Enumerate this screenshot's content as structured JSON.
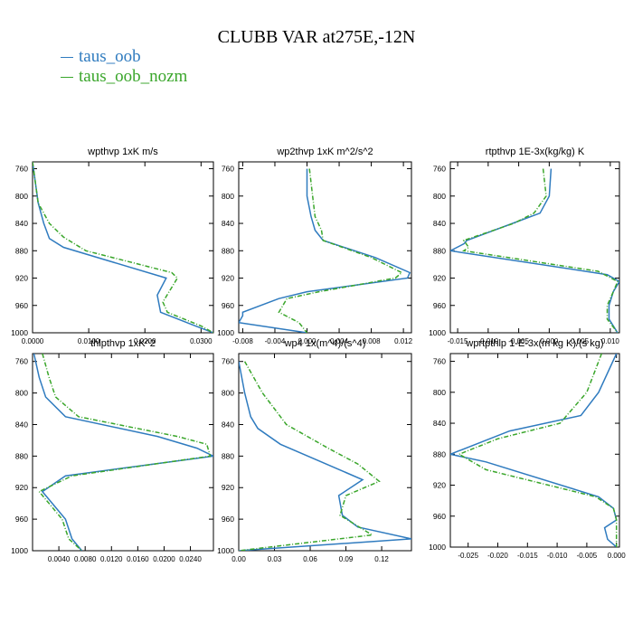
{
  "title": "CLUBB VAR at275E,-12N",
  "colors": {
    "taus_oob": "#2f7bbf",
    "taus_oob_nozm": "#3aa62b"
  },
  "legend": [
    {
      "name": "taus_oob",
      "color": "#2f7bbf",
      "style": "solid"
    },
    {
      "name": "taus_oob_nozm",
      "color": "#3aa62b",
      "style": "dashed"
    }
  ],
  "chart_data": [
    {
      "type": "line",
      "title": "wpthvp  1xK m/s",
      "xlim": [
        0,
        0.0322
      ],
      "ylim": [
        1000,
        750
      ],
      "xticks": [
        0,
        0.01,
        0.02,
        0.03
      ],
      "xticklabels": [
        "0.0000",
        "0.0100",
        "0.0200",
        "0.0300"
      ],
      "yticks": [
        760,
        800,
        840,
        880,
        920,
        960,
        1000
      ],
      "yticklabels": [
        "760",
        "800",
        "840",
        "880",
        "920",
        "960",
        "1000"
      ],
      "series": [
        {
          "name": "taus_oob",
          "y": [
            750,
            780,
            810,
            840,
            862,
            875,
            920,
            945,
            970,
            990,
            1000
          ],
          "x": [
            0.0,
            0.0005,
            0.001,
            0.002,
            0.003,
            0.0055,
            0.0238,
            0.0222,
            0.0228,
            0.029,
            0.0322
          ]
        },
        {
          "name": "taus_oob_nozm",
          "y": [
            750,
            780,
            810,
            840,
            860,
            880,
            912,
            920,
            955,
            970,
            990,
            1000
          ],
          "x": [
            0.0,
            0.0005,
            0.001,
            0.003,
            0.0055,
            0.0095,
            0.0248,
            0.0258,
            0.0232,
            0.024,
            0.03,
            0.0322
          ]
        }
      ]
    },
    {
      "type": "line",
      "title": "wp2thvp  1xK m^2/s^2",
      "xlim": [
        -0.0085,
        0.013
      ],
      "ylim": [
        1000,
        750
      ],
      "xticks": [
        -0.008,
        -0.004,
        0.0,
        0.004,
        0.008,
        0.012
      ],
      "xticklabels": [
        "-0.008",
        "-0.004",
        "0.000",
        "0.004",
        "0.008",
        "0.012"
      ],
      "yticks": [
        760,
        800,
        840,
        880,
        920,
        960,
        1000
      ],
      "yticklabels": [
        "760",
        "800",
        "840",
        "880",
        "920",
        "960",
        "1000"
      ],
      "series": [
        {
          "name": "taus_oob",
          "y": [
            760,
            800,
            830,
            850,
            865,
            890,
            912,
            920,
            940,
            950,
            970,
            975,
            985,
            1000
          ],
          "x": [
            0.0,
            0.0,
            0.0005,
            0.001,
            0.002,
            0.0085,
            0.0128,
            0.0125,
            0.0,
            -0.0035,
            -0.008,
            -0.008,
            -0.0085,
            0.0
          ]
        },
        {
          "name": "taus_oob_nozm",
          "y": [
            760,
            800,
            830,
            850,
            865,
            890,
            912,
            920,
            940,
            950,
            970,
            985,
            1000
          ],
          "x": [
            0.0003,
            0.0007,
            0.001,
            0.0018,
            0.002,
            0.008,
            0.0118,
            0.011,
            0.0015,
            -0.0025,
            -0.0035,
            -0.001,
            0.0
          ]
        }
      ]
    },
    {
      "type": "line",
      "title": "rtpthvp  1E-3x(kg/kg) K",
      "xlim": [
        -0.0162,
        0.0115
      ],
      "ylim": [
        1000,
        750
      ],
      "xticks": [
        -0.015,
        -0.01,
        -0.005,
        0.0,
        0.005,
        0.01
      ],
      "xticklabels": [
        "-0.015",
        "-0.010",
        "-0.005",
        "0.000",
        "0.005",
        "0.010"
      ],
      "yticks": [
        760,
        800,
        840,
        880,
        920,
        960,
        1000
      ],
      "yticklabels": [
        "760",
        "800",
        "840",
        "880",
        "920",
        "960",
        "1000"
      ],
      "series": [
        {
          "name": "taus_oob",
          "y": [
            760,
            800,
            825,
            840,
            865,
            870,
            880,
            915,
            925,
            940,
            960,
            980,
            1000
          ],
          "x": [
            0.0003,
            0.0,
            -0.0015,
            -0.006,
            -0.0135,
            -0.014,
            -0.0162,
            0.0095,
            0.0115,
            0.0105,
            0.0098,
            0.0098,
            0.0112
          ]
        },
        {
          "name": "taus_oob_nozm",
          "y": [
            760,
            800,
            825,
            840,
            865,
            875,
            880,
            910,
            925,
            940,
            960,
            980,
            1000
          ],
          "x": [
            -0.001,
            -0.0005,
            -0.0025,
            -0.0058,
            -0.014,
            -0.0132,
            -0.014,
            0.008,
            0.0112,
            0.0105,
            0.0095,
            0.0095,
            0.0112
          ]
        }
      ]
    },
    {
      "type": "line",
      "title": "thlpthvp  1xK^2",
      "xlim": [
        0,
        0.0275
      ],
      "ylim": [
        1000,
        750
      ],
      "xticks": [
        0.004,
        0.008,
        0.012,
        0.016,
        0.02,
        0.024
      ],
      "xticklabels": [
        "0.0040",
        "0.0080",
        "0.0120",
        "0.0160",
        "0.0200",
        "0.0240"
      ],
      "yticks": [
        760,
        800,
        840,
        880,
        920,
        960,
        1000
      ],
      "yticklabels": [
        "760",
        "800",
        "840",
        "880",
        "920",
        "960",
        "1000"
      ],
      "series": [
        {
          "name": "taus_oob",
          "y": [
            750,
            780,
            805,
            830,
            855,
            870,
            880,
            905,
            925,
            960,
            985,
            1000
          ],
          "x": [
            0.0002,
            0.001,
            0.002,
            0.005,
            0.019,
            0.025,
            0.0275,
            0.005,
            0.0015,
            0.005,
            0.006,
            0.0075
          ]
        },
        {
          "name": "taus_oob_nozm",
          "y": [
            750,
            780,
            805,
            830,
            855,
            865,
            880,
            905,
            925,
            960,
            985,
            1000
          ],
          "x": [
            0.0015,
            0.0025,
            0.0035,
            0.007,
            0.022,
            0.0265,
            0.027,
            0.006,
            0.001,
            0.0045,
            0.0055,
            0.0075
          ]
        }
      ]
    },
    {
      "type": "line",
      "title": "wp4  1x(m^4)/(s^4)",
      "xlim": [
        0,
        0.145
      ],
      "ylim": [
        1000,
        750
      ],
      "xticks": [
        0.0,
        0.03,
        0.06,
        0.09,
        0.12
      ],
      "xticklabels": [
        "0.00",
        "0.03",
        "0.06",
        "0.09",
        "0.12"
      ],
      "yticks": [
        760,
        800,
        840,
        880,
        920,
        960,
        1000
      ],
      "yticklabels": [
        "760",
        "800",
        "840",
        "880",
        "920",
        "960",
        "1000"
      ],
      "series": [
        {
          "name": "taus_oob",
          "y": [
            760,
            800,
            830,
            845,
            865,
            910,
            930,
            955,
            970,
            985,
            1000
          ],
          "x": [
            0.0,
            0.005,
            0.01,
            0.016,
            0.035,
            0.104,
            0.084,
            0.087,
            0.1,
            0.145,
            0.0
          ]
        },
        {
          "name": "taus_oob_nozm",
          "y": [
            760,
            800,
            840,
            870,
            890,
            912,
            930,
            955,
            980,
            1000
          ],
          "x": [
            0.005,
            0.02,
            0.04,
            0.075,
            0.1,
            0.118,
            0.09,
            0.085,
            0.112,
            0.0
          ]
        }
      ]
    },
    {
      "type": "line",
      "title": "wprtpthlp  1-E-3x(m kg K)/(s kg)",
      "xlim": [
        -0.028,
        0.0005
      ],
      "ylim": [
        1000,
        750
      ],
      "xticks": [
        -0.025,
        -0.02,
        -0.015,
        -0.01,
        -0.005,
        0.0
      ],
      "xticklabels": [
        "-0.025",
        "-0.020",
        "-0.015",
        "-0.010",
        "-0.005",
        "0.000"
      ],
      "yticks": [
        760,
        800,
        840,
        880,
        920,
        960,
        1000
      ],
      "yticklabels": [
        "760",
        "800",
        "840",
        "880",
        "920",
        "960",
        "1000"
      ],
      "series": [
        {
          "name": "taus_oob",
          "y": [
            750,
            800,
            830,
            850,
            880,
            890,
            935,
            950,
            965,
            975,
            990,
            1000
          ],
          "x": [
            0.0,
            -0.003,
            -0.006,
            -0.018,
            -0.028,
            -0.022,
            -0.003,
            -0.0005,
            0.0,
            -0.002,
            -0.0015,
            0.0
          ]
        },
        {
          "name": "taus_oob_nozm",
          "y": [
            750,
            800,
            840,
            860,
            880,
            900,
            935,
            950,
            965,
            980,
            1000
          ],
          "x": [
            -0.0025,
            -0.005,
            -0.0095,
            -0.02,
            -0.0265,
            -0.022,
            -0.0035,
            -0.0005,
            0.0,
            0.0,
            0.0
          ]
        }
      ]
    }
  ]
}
